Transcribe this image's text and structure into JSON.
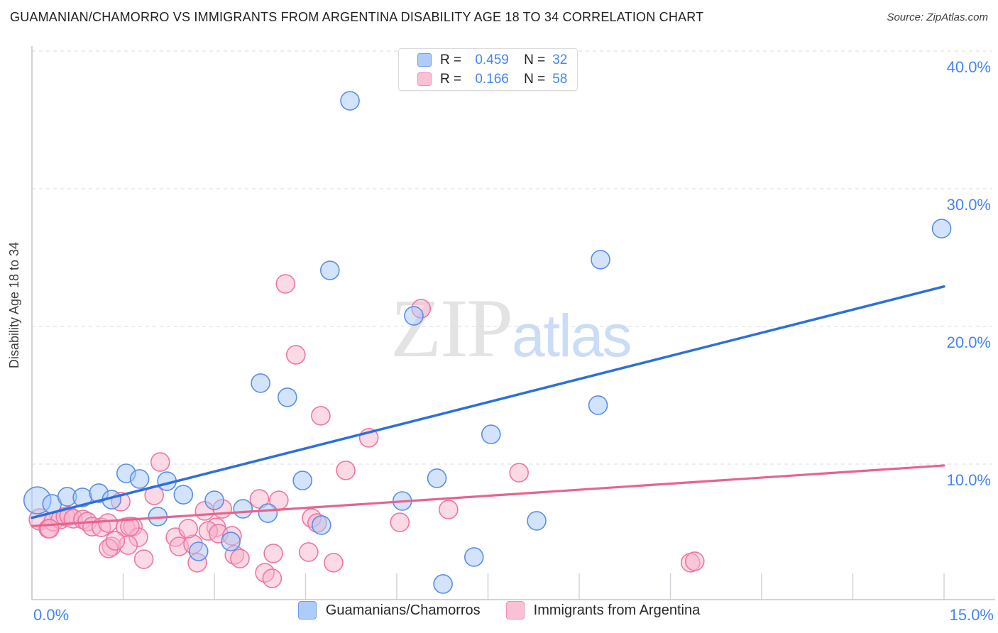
{
  "header": {
    "title": "GUAMANIAN/CHAMORRO VS IMMIGRANTS FROM ARGENTINA DISABILITY AGE 18 TO 34 CORRELATION CHART",
    "source": "Source: ZipAtlas.com"
  },
  "watermark": {
    "zip": "ZIP",
    "atlas": "atlas"
  },
  "legend_box": {
    "rows": [
      {
        "r_label": "R =",
        "r_value": "0.459",
        "n_label": "N =",
        "n_value": "32"
      },
      {
        "r_label": "R =",
        "r_value": "0.166",
        "n_label": "N =",
        "n_value": "58"
      }
    ]
  },
  "chart_data": {
    "type": "scatter",
    "title": "Guamanian/Chamorro vs Immigrants from Argentina Disability Age 18 to 34",
    "xlabel": "",
    "ylabel": "Disability Age 18 to 34",
    "xlim": [
      0,
      15
    ],
    "ylim": [
      0,
      41
    ],
    "x_tick_step": 1.5,
    "x_axis_labels": {
      "left": "0.0%",
      "right": "15.0%"
    },
    "y_gridlines": [
      40,
      30,
      20,
      10
    ],
    "y_tick_labels": [
      "40.0%",
      "30.0%",
      "20.0%",
      "10.0%"
    ],
    "grid": true,
    "legend_position": "bottom-center",
    "accent_color": "#4285f4",
    "series": [
      {
        "name": "Guamanians/Chamorros",
        "R": 0.459,
        "N": 32,
        "fill": "#a6c8f7",
        "fill_opacity": 0.5,
        "stroke": "#5a8ee8",
        "swatch_fill": "#aecbfa",
        "swatch_stroke": "#6e9cef",
        "points": [
          [
            0.09,
            7.37,
            19
          ],
          [
            0.33,
            7.11
          ],
          [
            0.58,
            7.63
          ],
          [
            0.83,
            7.58
          ],
          [
            1.1,
            7.89
          ],
          [
            1.31,
            7.42
          ],
          [
            1.55,
            9.33
          ],
          [
            1.77,
            8.92
          ],
          [
            2.22,
            8.76
          ],
          [
            2.49,
            7.78
          ],
          [
            3.0,
            7.37
          ],
          [
            3.47,
            6.75
          ],
          [
            3.88,
            6.44
          ],
          [
            4.45,
            8.81
          ],
          [
            4.76,
            5.57
          ],
          [
            3.27,
            4.38
          ],
          [
            2.74,
            3.66
          ],
          [
            2.07,
            6.19
          ],
          [
            3.76,
            15.88
          ],
          [
            4.2,
            14.85
          ],
          [
            4.9,
            24.07
          ],
          [
            5.23,
            36.39
          ],
          [
            6.28,
            20.77
          ],
          [
            6.09,
            7.32
          ],
          [
            6.66,
            8.97
          ],
          [
            6.76,
            1.29
          ],
          [
            7.27,
            3.25
          ],
          [
            7.55,
            12.16
          ],
          [
            8.3,
            5.88
          ],
          [
            9.31,
            14.28
          ],
          [
            9.35,
            24.85
          ],
          [
            14.96,
            27.11
          ]
        ]
      },
      {
        "name": "Immigrants from Argentina",
        "R": 0.166,
        "N": 58,
        "fill": "#f7b3cb",
        "fill_opacity": 0.5,
        "stroke": "#f075a2",
        "swatch_fill": "#fac0d4",
        "swatch_stroke": "#f291b5",
        "points": [
          [
            0.13,
            5.98,
            15
          ],
          [
            0.27,
            5.31
          ],
          [
            0.35,
            5.82
          ],
          [
            0.47,
            5.98
          ],
          [
            0.55,
            6.19
          ],
          [
            0.61,
            6.24
          ],
          [
            0.68,
            6.03
          ],
          [
            0.84,
            5.98
          ],
          [
            0.91,
            5.82
          ],
          [
            0.99,
            5.46
          ],
          [
            1.14,
            5.41
          ],
          [
            1.25,
            5.72
          ],
          [
            1.46,
            7.27
          ],
          [
            1.54,
            5.41
          ],
          [
            1.66,
            5.46
          ],
          [
            1.75,
            4.69
          ],
          [
            1.31,
            4.02
          ],
          [
            1.58,
            4.12
          ],
          [
            1.84,
            3.09
          ],
          [
            2.11,
            10.15
          ],
          [
            2.01,
            7.73
          ],
          [
            0.29,
            5.31
          ],
          [
            2.36,
            4.69
          ],
          [
            2.42,
            4.02
          ],
          [
            2.65,
            4.18
          ],
          [
            2.72,
            2.84
          ],
          [
            2.84,
            6.6
          ],
          [
            3.13,
            6.75
          ],
          [
            3.33,
            3.4
          ],
          [
            3.42,
            3.14
          ],
          [
            3.74,
            7.47
          ],
          [
            4.06,
            7.37
          ],
          [
            3.97,
            3.51
          ],
          [
            4.55,
            3.61
          ],
          [
            4.96,
            2.84
          ],
          [
            3.83,
            2.11
          ],
          [
            3.95,
            1.7
          ],
          [
            4.6,
            6.08
          ],
          [
            4.69,
            5.72
          ],
          [
            3.03,
            5.41
          ],
          [
            2.9,
            5.15
          ],
          [
            2.57,
            5.31
          ],
          [
            3.07,
            4.95
          ],
          [
            3.29,
            4.79
          ],
          [
            4.17,
            23.09
          ],
          [
            4.34,
            17.94
          ],
          [
            4.75,
            13.51
          ],
          [
            5.54,
            11.91
          ],
          [
            6.4,
            21.29
          ],
          [
            6.05,
            5.77
          ],
          [
            6.85,
            6.7
          ],
          [
            8.01,
            9.38
          ],
          [
            10.83,
            2.84
          ],
          [
            10.9,
            2.94
          ],
          [
            5.16,
            9.54
          ],
          [
            1.26,
            3.87
          ],
          [
            1.37,
            4.43
          ],
          [
            1.61,
            5.46
          ]
        ]
      }
    ],
    "trend_lines": [
      {
        "series": "Immigrants from Argentina",
        "x": [
          0,
          15
        ],
        "y": [
          5.5,
          9.9
        ],
        "color": "#e8638c",
        "width": 3.2
      },
      {
        "series": "Guamanians/Chamorros",
        "x": [
          0,
          15
        ],
        "y": [
          6.1,
          22.9
        ],
        "color": "#2d6fdb",
        "width": 3.5
      }
    ],
    "style": {
      "grid_color": "#d8dbde",
      "axis_color": "#c2c6ca",
      "tick_color": "#cdd0d4",
      "tick_label_color": "#4285f4"
    }
  }
}
